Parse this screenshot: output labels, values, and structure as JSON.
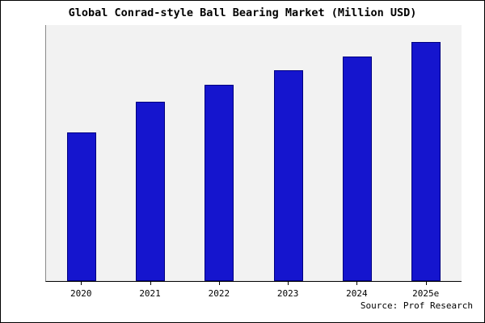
{
  "title": "Global Conrad-style Ball Bearing Market (Million USD)",
  "source": "Source: Prof Research",
  "colors": {
    "bar_fill": "#1515CE",
    "bar_border": "#000080",
    "plot_bg": "#F2F2F2",
    "frame_border": "#000000"
  },
  "chart_data": {
    "type": "bar",
    "title": "Global Conrad-style Ball Bearing Market (Million USD)",
    "categories": [
      "2020",
      "2021",
      "2022",
      "2023",
      "2024",
      "2025e"
    ],
    "values": [
      62,
      75,
      82,
      88,
      94,
      100
    ],
    "xlabel": "",
    "ylabel": "",
    "ylim": [
      0,
      107
    ],
    "grid": false,
    "legend": false,
    "plot_background": "#F2F2F2",
    "source": "Source: Prof Research"
  }
}
